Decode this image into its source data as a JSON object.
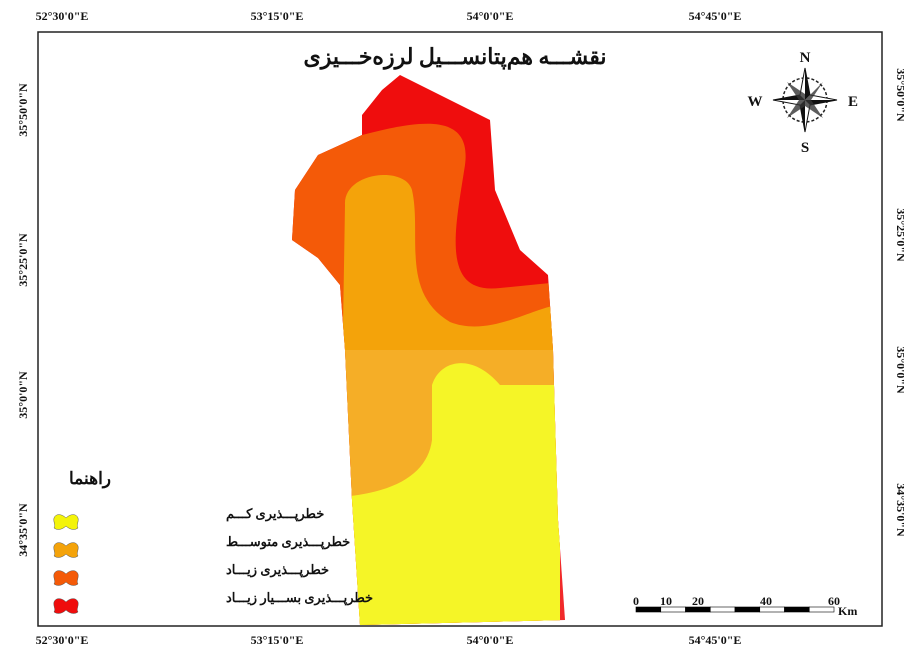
{
  "title": "نقشـــه هم‌پتانســـیل لرزه‌خـــیزی",
  "top_labels": [
    "52°30'0\"E",
    "53°15'0\"E",
    "54°0'0\"E",
    "54°45'0\"E"
  ],
  "bottom_labels": [
    "52°30'0\"E",
    "53°15'0\"E",
    "54°0'0\"E",
    "54°45'0\"E"
  ],
  "left_labels": [
    "35°50'0\"N",
    "35°25'0\"N",
    "35°0'0\"N",
    "34°35'0\"N"
  ],
  "right_labels": [
    "35°50'0\"N",
    "35°25'0\"N",
    "35°0'0\"N",
    "34°35'0\"N"
  ],
  "compass": {
    "n": "N",
    "e": "E",
    "s": "S",
    "w": "W"
  },
  "legend": {
    "title": "راهنما",
    "items": [
      {
        "label": "خطرپـــذیری کـــم",
        "color": "#f4f40a"
      },
      {
        "label": "خطرپـــذیری متوســـط",
        "color": "#f4a30a"
      },
      {
        "label": "خطرپـــذیری زیـــاد",
        "color": "#f45a08"
      },
      {
        "label": "خطرپـــذیری بســـیار زیـــاد",
        "color": "#ef0d0d"
      }
    ]
  },
  "scale": {
    "ticks": [
      "0",
      "10",
      "20",
      "40",
      "60"
    ],
    "unit": "Km"
  }
}
